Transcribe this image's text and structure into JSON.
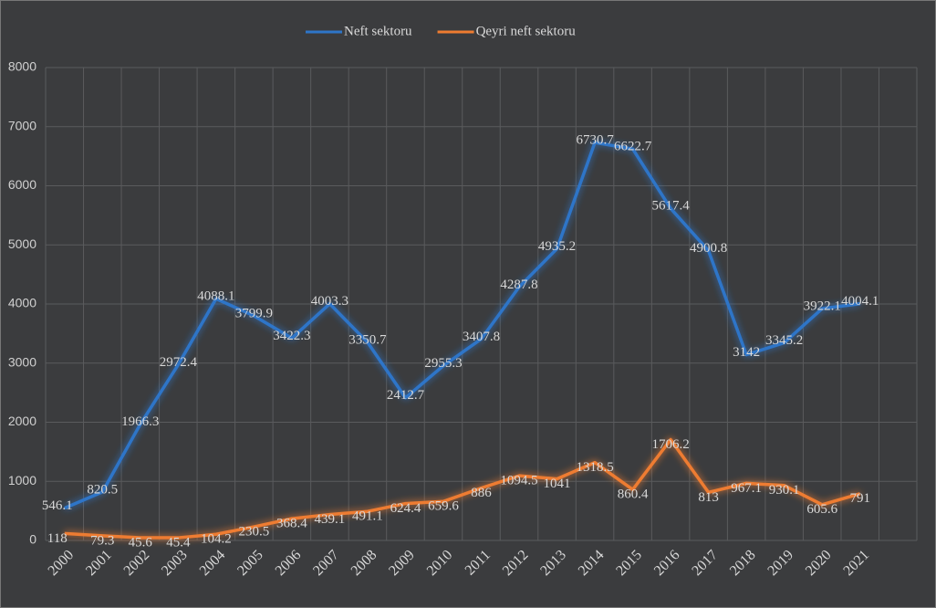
{
  "chart_data": {
    "type": "line",
    "categories": [
      "2000",
      "2001",
      "2002",
      "2003",
      "2004",
      "2005",
      "2006",
      "2007",
      "2008",
      "2009",
      "2010",
      "2011",
      "2012",
      "2013",
      "2014",
      "2015",
      "2016",
      "2017",
      "2018",
      "2019",
      "2020",
      "2021"
    ],
    "series": [
      {
        "name": "Neft sektoru",
        "color": "#2e75c8",
        "values": [
          546.1,
          820.5,
          1966.3,
          2972.4,
          4088.1,
          3799.9,
          3422.3,
          4003.3,
          3350.7,
          2412.7,
          2955.3,
          3407.8,
          4287.8,
          4935.2,
          6730.7,
          6622.7,
          5617.4,
          4900.8,
          3142,
          3345.2,
          3922.1,
          4004.1
        ]
      },
      {
        "name": "Qeyri neft sektoru",
        "color": "#ee7c30",
        "values": [
          118,
          79.3,
          45.6,
          45.4,
          104.2,
          230.5,
          368.4,
          439.1,
          491.1,
          624.4,
          659.6,
          886,
          1094.5,
          1041,
          1318.5,
          860.4,
          1706.2,
          813,
          967.1,
          930.1,
          605.6,
          791
        ]
      }
    ],
    "ylim": [
      0,
      8000
    ],
    "yticks": [
      0,
      1000,
      2000,
      3000,
      4000,
      5000,
      6000,
      7000,
      8000
    ],
    "grid": true,
    "legend": "top"
  }
}
